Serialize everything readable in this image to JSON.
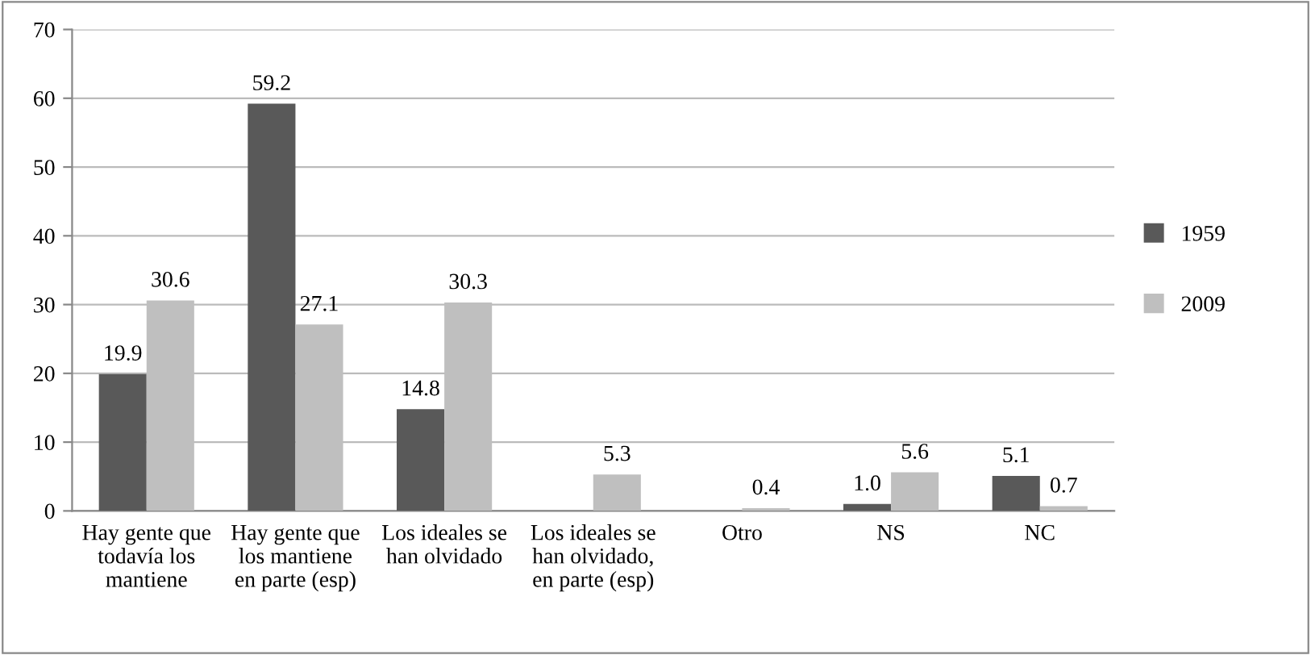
{
  "chart_data": {
    "type": "bar",
    "categories": [
      "Hay gente que\ntodavía los\nmantiene",
      "Hay gente que\nlos mantiene\nen parte (esp)",
      "Los ideales se\nhan olvidado",
      "Los ideales se\nhan olvidado,\nen parte (esp)",
      "Otro",
      "NS",
      "NC"
    ],
    "series": [
      {
        "name": "1959",
        "color": "#595959",
        "values": [
          19.9,
          59.2,
          14.8,
          null,
          null,
          1.0,
          5.1
        ],
        "value_labels": [
          "19.9",
          "59.2",
          "14.8",
          null,
          null,
          "1.0",
          "5.1"
        ]
      },
      {
        "name": "2009",
        "color": "#bfbfbf",
        "values": [
          30.6,
          27.1,
          30.3,
          5.3,
          0.4,
          5.6,
          0.7
        ],
        "value_labels": [
          "30.6",
          "27.1",
          "30.3",
          "5.3",
          "0.4",
          "5.6",
          "0.7"
        ]
      }
    ],
    "ylim": [
      0,
      70
    ],
    "yticks": [
      0,
      10,
      20,
      30,
      40,
      50,
      60,
      70
    ],
    "grid": "y",
    "legend": "right"
  }
}
